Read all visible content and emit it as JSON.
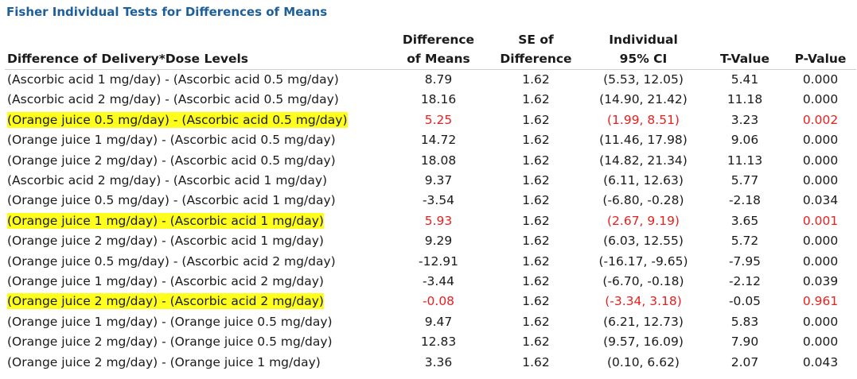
{
  "title": "Fisher Individual Tests for Differences of Means",
  "table": {
    "headers": [
      "Difference of Delivery*Dose Levels",
      "Difference of Means",
      "SE of Difference",
      "Individual 95% CI",
      "T-Value",
      "P-Value"
    ],
    "header_lines": [
      [
        "Difference of Delivery*Dose Levels"
      ],
      [
        "Difference",
        "of Means"
      ],
      [
        "SE of",
        "Difference"
      ],
      [
        "Individual",
        "95% CI"
      ],
      [
        "T-Value"
      ],
      [
        "P-Value"
      ]
    ],
    "rows": [
      {
        "label": "(Ascorbic acid 1 mg/day) - (Ascorbic acid 0.5 mg/day)",
        "diff": "8.79",
        "se": "1.62",
        "ci": "(5.53, 12.05)",
        "t": "5.41",
        "p": "0.000",
        "highlight": false
      },
      {
        "label": "(Ascorbic acid 2 mg/day) - (Ascorbic acid 0.5 mg/day)",
        "diff": "18.16",
        "se": "1.62",
        "ci": "(14.90, 21.42)",
        "t": "11.18",
        "p": "0.000",
        "highlight": false
      },
      {
        "label": "(Orange juice 0.5 mg/day) - (Ascorbic acid 0.5 mg/day)",
        "diff": "5.25",
        "se": "1.62",
        "ci": "(1.99, 8.51)",
        "t": "3.23",
        "p": "0.002",
        "highlight": true
      },
      {
        "label": "(Orange juice 1 mg/day) - (Ascorbic acid 0.5 mg/day)",
        "diff": "14.72",
        "se": "1.62",
        "ci": "(11.46, 17.98)",
        "t": "9.06",
        "p": "0.000",
        "highlight": false
      },
      {
        "label": "(Orange juice 2 mg/day) - (Ascorbic acid 0.5 mg/day)",
        "diff": "18.08",
        "se": "1.62",
        "ci": "(14.82, 21.34)",
        "t": "11.13",
        "p": "0.000",
        "highlight": false
      },
      {
        "label": "(Ascorbic acid 2 mg/day) - (Ascorbic acid 1 mg/day)",
        "diff": "9.37",
        "se": "1.62",
        "ci": "(6.11, 12.63)",
        "t": "5.77",
        "p": "0.000",
        "highlight": false
      },
      {
        "label": "(Orange juice 0.5 mg/day) - (Ascorbic acid 1 mg/day)",
        "diff": "-3.54",
        "se": "1.62",
        "ci": "(-6.80, -0.28)",
        "t": "-2.18",
        "p": "0.034",
        "highlight": false
      },
      {
        "label": "(Orange juice 1 mg/day) - (Ascorbic acid 1 mg/day)",
        "diff": "5.93",
        "se": "1.62",
        "ci": "(2.67, 9.19)",
        "t": "3.65",
        "p": "0.001",
        "highlight": true
      },
      {
        "label": "(Orange juice 2 mg/day) - (Ascorbic acid 1 mg/day)",
        "diff": "9.29",
        "se": "1.62",
        "ci": "(6.03, 12.55)",
        "t": "5.72",
        "p": "0.000",
        "highlight": false
      },
      {
        "label": "(Orange juice 0.5 mg/day) - (Ascorbic acid 2 mg/day)",
        "diff": "-12.91",
        "se": "1.62",
        "ci": "(-16.17, -9.65)",
        "t": "-7.95",
        "p": "0.000",
        "highlight": false
      },
      {
        "label": "(Orange juice 1 mg/day) - (Ascorbic acid 2 mg/day)",
        "diff": "-3.44",
        "se": "1.62",
        "ci": "(-6.70, -0.18)",
        "t": "-2.12",
        "p": "0.039",
        "highlight": false
      },
      {
        "label": "(Orange juice 2 mg/day) - (Ascorbic acid 2 mg/day)",
        "diff": "-0.08",
        "se": "1.62",
        "ci": "(-3.34, 3.18)",
        "t": "-0.05",
        "p": "0.961",
        "highlight": true
      },
      {
        "label": "(Orange juice 1 mg/day) - (Orange juice 0.5 mg/day)",
        "diff": "9.47",
        "se": "1.62",
        "ci": "(6.21, 12.73)",
        "t": "5.83",
        "p": "0.000",
        "highlight": false
      },
      {
        "label": "(Orange juice 2 mg/day) - (Orange juice 0.5 mg/day)",
        "diff": "12.83",
        "se": "1.62",
        "ci": "(9.57, 16.09)",
        "t": "7.90",
        "p": "0.000",
        "highlight": false
      },
      {
        "label": "(Orange juice 2 mg/day) - (Orange juice 1 mg/day)",
        "diff": "3.36",
        "se": "1.62",
        "ci": "(0.10, 6.62)",
        "t": "2.07",
        "p": "0.043",
        "highlight": false
      }
    ]
  },
  "colors": {
    "title": "#1f5f99",
    "highlight": "#ffff1e",
    "emphasis_text": "#e8201f"
  }
}
